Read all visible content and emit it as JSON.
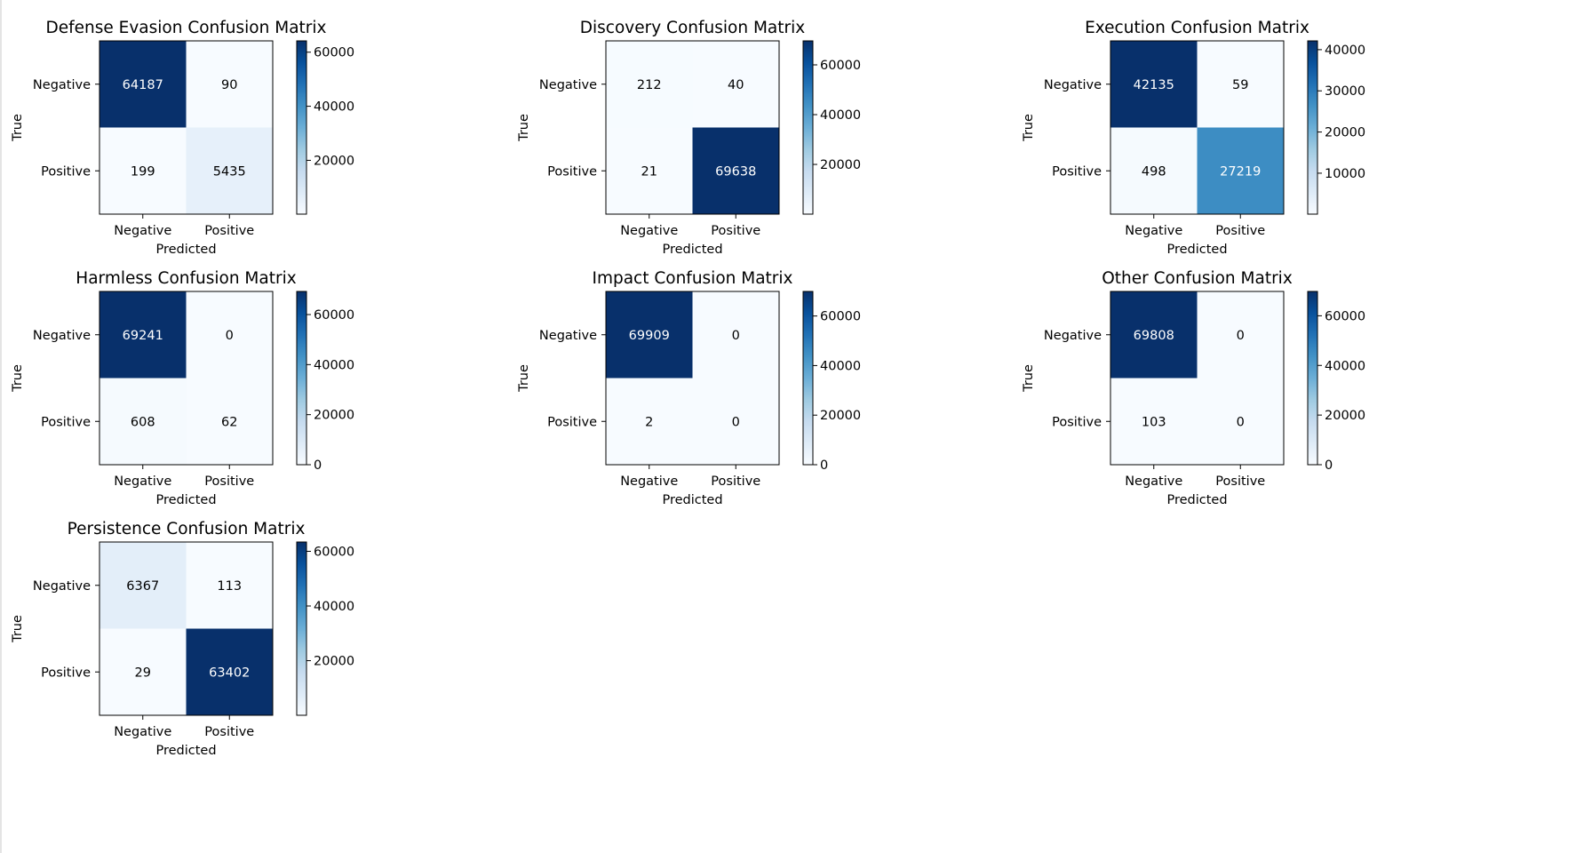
{
  "figure": {
    "colormap": "Blues",
    "colormap_light": "#f7fbff",
    "colormap_dark": "#08306b",
    "text_dark": "#000000",
    "text_light": "#ffffff"
  },
  "chart_data": [
    {
      "type": "heatmap",
      "title": "Defense Evasion Confusion Matrix",
      "xlabel": "Predicted",
      "ylabel": "True",
      "x_categories": [
        "Negative",
        "Positive"
      ],
      "y_categories": [
        "Negative",
        "Positive"
      ],
      "values": [
        [
          64187,
          90
        ],
        [
          199,
          5435
        ]
      ],
      "colorbar_ticks": [
        "20000",
        "40000",
        "60000"
      ]
    },
    {
      "type": "heatmap",
      "title": "Discovery Confusion Matrix",
      "xlabel": "Predicted",
      "ylabel": "True",
      "x_categories": [
        "Negative",
        "Positive"
      ],
      "y_categories": [
        "Negative",
        "Positive"
      ],
      "values": [
        [
          212,
          40
        ],
        [
          21,
          69638
        ]
      ],
      "colorbar_ticks": [
        "20000",
        "40000",
        "60000"
      ]
    },
    {
      "type": "heatmap",
      "title": "Execution Confusion Matrix",
      "xlabel": "Predicted",
      "ylabel": "True",
      "x_categories": [
        "Negative",
        "Positive"
      ],
      "y_categories": [
        "Negative",
        "Positive"
      ],
      "values": [
        [
          42135,
          59
        ],
        [
          498,
          27219
        ]
      ],
      "colorbar_ticks": [
        "10000",
        "20000",
        "30000",
        "40000"
      ]
    },
    {
      "type": "heatmap",
      "title": "Harmless Confusion Matrix",
      "xlabel": "Predicted",
      "ylabel": "True",
      "x_categories": [
        "Negative",
        "Positive"
      ],
      "y_categories": [
        "Negative",
        "Positive"
      ],
      "values": [
        [
          69241,
          0
        ],
        [
          608,
          62
        ]
      ],
      "colorbar_ticks": [
        "0",
        "20000",
        "40000",
        "60000"
      ]
    },
    {
      "type": "heatmap",
      "title": "Impact Confusion Matrix",
      "xlabel": "Predicted",
      "ylabel": "True",
      "x_categories": [
        "Negative",
        "Positive"
      ],
      "y_categories": [
        "Negative",
        "Positive"
      ],
      "values": [
        [
          69909,
          0
        ],
        [
          2,
          0
        ]
      ],
      "colorbar_ticks": [
        "0",
        "20000",
        "40000",
        "60000"
      ]
    },
    {
      "type": "heatmap",
      "title": "Other Confusion Matrix",
      "xlabel": "Predicted",
      "ylabel": "True",
      "x_categories": [
        "Negative",
        "Positive"
      ],
      "y_categories": [
        "Negative",
        "Positive"
      ],
      "values": [
        [
          69808,
          0
        ],
        [
          103,
          0
        ]
      ],
      "colorbar_ticks": [
        "0",
        "20000",
        "40000",
        "60000"
      ]
    },
    {
      "type": "heatmap",
      "title": "Persistence Confusion Matrix",
      "xlabel": "Predicted",
      "ylabel": "True",
      "x_categories": [
        "Negative",
        "Positive"
      ],
      "y_categories": [
        "Negative",
        "Positive"
      ],
      "values": [
        [
          6367,
          113
        ],
        [
          29,
          63402
        ]
      ],
      "colorbar_ticks": [
        "20000",
        "40000",
        "60000"
      ]
    }
  ]
}
